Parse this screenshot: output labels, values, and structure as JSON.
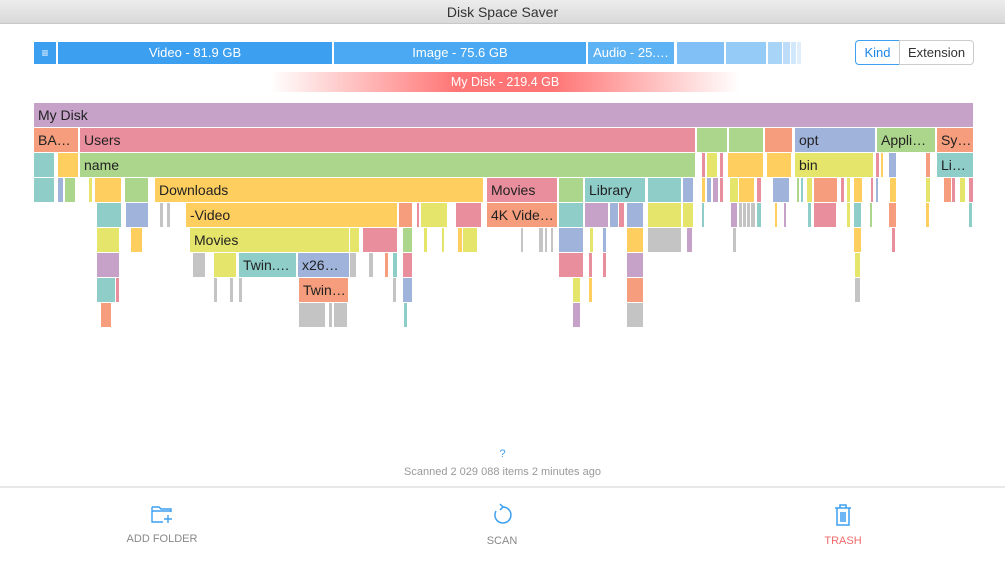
{
  "window": {
    "title": "Disk Space Saver"
  },
  "kind_bar": {
    "menu_icon": "hamburger-icon",
    "segments": [
      {
        "label": "Video - 81.9 GB",
        "color": "#3d9ff0"
      },
      {
        "label": "Image - 75.6 GB",
        "color": "#4aa9f2"
      },
      {
        "label": "Audio - 25.…",
        "color": "#5eb3f4"
      },
      {
        "label": "",
        "color": "#80c0f6"
      },
      {
        "label": "",
        "color": "#95cbf7"
      },
      {
        "label": "",
        "color": "#a8d4f8"
      },
      {
        "label": "",
        "color": "#bcdcfa"
      },
      {
        "label": "",
        "color": "#d1e7fb"
      },
      {
        "label": "",
        "color": "#e0eefc"
      }
    ]
  },
  "view_toggle": {
    "kind": "Kind",
    "extension": "Extension",
    "selected": "Kind"
  },
  "disk_bar": {
    "label": "My Disk - 219.4 GB"
  },
  "palette": {
    "purple": "#c6a2c9",
    "pink": "#e88e9c",
    "orange": "#f59d7c",
    "green": "#acd68c",
    "yellow": "#fece5e",
    "lime": "#e5e56b",
    "teal": "#8ecdc8",
    "blue": "#a0b4db",
    "gray": "#c4c4c4"
  },
  "tree_labels": [
    "My Disk",
    "BA…",
    "Users",
    "opt",
    "Appli…",
    "Sy…",
    "name",
    "bin",
    "Li…",
    "Downloads",
    "Movies",
    "Library",
    "-Video",
    "4K Vide…",
    "Movies",
    "Twin.…",
    "x26…",
    "Twin…"
  ],
  "help": "?",
  "status": "Scanned 2 029 088 items 2 minutes ago",
  "actions": {
    "add_folder": "ADD FOLDER",
    "scan": "SCAN",
    "trash": "TRASH"
  }
}
